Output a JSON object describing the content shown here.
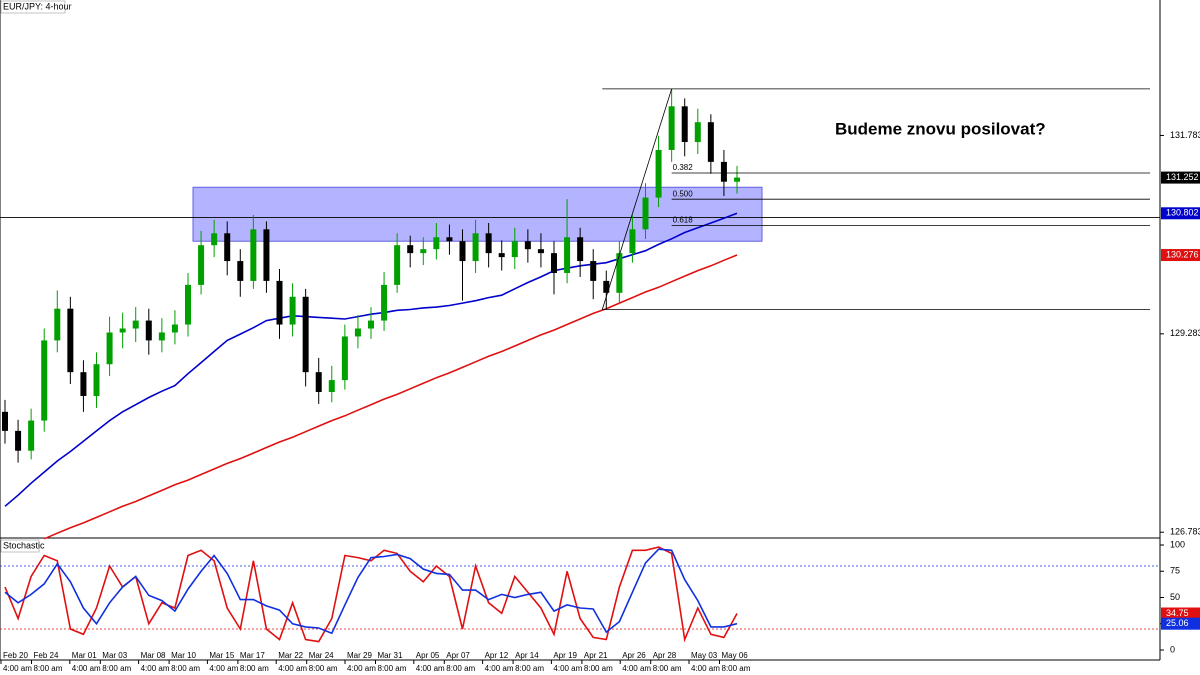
{
  "chart_data": [
    {
      "type": "candlestick",
      "title": "EUR/JPY: 4-hour",
      "annotation": "Budeme znovu posilovat?",
      "ylim": [
        126.71,
        133.49
      ],
      "yticks": [
        126.783,
        129.283,
        131.783
      ],
      "up_color": "#00a000",
      "down_color": "#000000",
      "open": [
        128.3,
        128.06,
        127.81,
        128.19,
        129.2,
        129.6,
        128.8,
        128.5,
        128.9,
        129.3,
        129.35,
        129.45,
        129.2,
        129.3,
        129.4,
        129.9,
        130.4,
        130.55,
        130.2,
        129.95,
        130.6,
        129.95,
        129.4,
        129.75,
        128.8,
        128.55,
        128.7,
        129.25,
        129.35,
        129.45,
        129.9,
        130.4,
        130.3,
        130.35,
        130.5,
        130.45,
        130.2,
        130.55,
        130.3,
        130.25,
        130.45,
        130.35,
        130.3,
        130.05,
        130.5,
        130.2,
        129.95,
        129.8,
        130.3,
        130.6,
        131.0,
        131.6,
        132.15,
        131.7,
        131.95,
        131.45,
        131.2
      ],
      "high": [
        128.45,
        128.2,
        128.34,
        129.35,
        129.83,
        129.75,
        128.95,
        129.05,
        129.5,
        129.55,
        129.62,
        129.6,
        129.48,
        129.58,
        130.05,
        130.58,
        130.72,
        130.7,
        130.35,
        130.78,
        130.7,
        130.1,
        129.92,
        129.85,
        128.98,
        128.88,
        129.4,
        129.52,
        129.62,
        130.06,
        130.55,
        130.52,
        130.5,
        130.68,
        130.66,
        130.6,
        130.72,
        130.68,
        130.46,
        130.62,
        130.6,
        130.55,
        130.45,
        130.98,
        130.62,
        130.35,
        130.08,
        130.45,
        130.78,
        131.18,
        131.78,
        132.37,
        132.25,
        132.12,
        132.05,
        131.6,
        131.4
      ],
      "low": [
        127.9,
        127.66,
        127.7,
        128.05,
        129.05,
        128.65,
        128.3,
        128.35,
        128.75,
        129.1,
        129.18,
        129.02,
        129.05,
        129.15,
        129.25,
        129.78,
        130.25,
        130.02,
        129.75,
        129.85,
        129.8,
        129.22,
        129.25,
        128.62,
        128.4,
        128.42,
        128.58,
        129.1,
        129.22,
        129.32,
        129.8,
        130.12,
        130.15,
        130.22,
        130.28,
        129.7,
        130.05,
        130.12,
        130.08,
        130.1,
        130.18,
        130.12,
        129.78,
        129.92,
        130.0,
        129.72,
        129.59,
        129.68,
        130.18,
        130.48,
        130.88,
        131.45,
        131.52,
        131.55,
        131.3,
        131.02,
        131.05
      ],
      "close": [
        128.06,
        127.81,
        128.19,
        129.2,
        129.6,
        128.8,
        128.5,
        128.9,
        129.3,
        129.35,
        129.45,
        129.2,
        129.3,
        129.4,
        129.9,
        130.4,
        130.55,
        130.2,
        129.95,
        130.6,
        129.95,
        129.4,
        129.75,
        128.8,
        128.55,
        128.7,
        129.25,
        129.35,
        129.45,
        129.9,
        130.4,
        130.3,
        130.35,
        130.5,
        130.45,
        130.2,
        130.55,
        130.3,
        130.25,
        130.45,
        130.35,
        130.3,
        130.05,
        130.5,
        130.2,
        129.95,
        129.8,
        130.3,
        130.6,
        131.0,
        131.6,
        132.15,
        131.7,
        131.95,
        131.45,
        131.2,
        131.252
      ],
      "series": [
        {
          "color": "#0000cc",
          "values": [
            127.11,
            127.25,
            127.4,
            127.54,
            127.68,
            127.8,
            127.93,
            128.06,
            128.19,
            128.3,
            128.39,
            128.48,
            128.56,
            128.63,
            128.78,
            128.92,
            129.06,
            129.2,
            129.28,
            129.36,
            129.45,
            129.48,
            129.51,
            129.5,
            129.49,
            129.48,
            129.47,
            129.5,
            129.53,
            129.55,
            129.58,
            129.59,
            129.61,
            129.62,
            129.64,
            129.67,
            129.7,
            129.74,
            129.77,
            129.85,
            129.93,
            130.0,
            130.08,
            130.11,
            130.14,
            130.16,
            130.18,
            130.23,
            130.28,
            130.33,
            130.41,
            130.48,
            130.56,
            130.62,
            130.68,
            130.74,
            130.802
          ]
        },
        {
          "color": "#e01010",
          "values": [
            null,
            null,
            null,
            126.7,
            126.77,
            126.84,
            126.9,
            126.97,
            127.04,
            127.11,
            127.17,
            127.24,
            127.31,
            127.38,
            127.44,
            127.51,
            127.58,
            127.65,
            127.71,
            127.78,
            127.85,
            127.92,
            127.98,
            128.05,
            128.12,
            128.19,
            128.25,
            128.32,
            128.39,
            128.46,
            128.52,
            128.59,
            128.66,
            128.73,
            128.79,
            128.86,
            128.93,
            129.0,
            129.06,
            129.13,
            129.2,
            129.27,
            129.33,
            129.4,
            129.47,
            129.54,
            129.6,
            129.67,
            129.74,
            129.81,
            129.87,
            129.94,
            130.01,
            130.08,
            130.14,
            130.21,
            130.276
          ]
        }
      ],
      "markers": [
        {
          "value": 131.252,
          "color": "#000000"
        },
        {
          "value": 130.802,
          "color": "#0000cc"
        },
        {
          "value": 130.276,
          "color": "#e01010"
        }
      ],
      "zone": [
        130.45,
        131.13
      ],
      "zone_color": "#8080ff",
      "hline": 130.75,
      "fib": {
        "high": 132.37,
        "low": 129.59,
        "levels": [
          {
            "label": "0.382",
            "price": 131.31
          },
          {
            "label": "0.500",
            "price": 130.98
          },
          {
            "label": "0.618",
            "price": 130.65
          }
        ]
      }
    },
    {
      "type": "line",
      "title": "Stochastic",
      "ylim": [
        0,
        100
      ],
      "yticks": [
        100,
        75,
        50,
        25,
        0
      ],
      "levels": [
        80,
        20
      ],
      "series": [
        {
          "color": "#e01010",
          "values": [
            60,
            30,
            70,
            90,
            85,
            20,
            15,
            40,
            80,
            60,
            70,
            25,
            45,
            40,
            90,
            95,
            85,
            40,
            20,
            85,
            20,
            10,
            45,
            10,
            8,
            30,
            90,
            88,
            85,
            95,
            92,
            75,
            65,
            80,
            70,
            20,
            80,
            45,
            35,
            70,
            55,
            40,
            15,
            75,
            30,
            12,
            10,
            60,
            95,
            95,
            98,
            92,
            10,
            40,
            15,
            12,
            34.75
          ]
        },
        {
          "color": "#1030e0",
          "values": [
            55,
            45,
            53,
            63,
            82,
            65,
            40,
            25,
            45,
            60,
            70,
            52,
            47,
            37,
            58,
            75,
            90,
            73,
            48,
            48,
            42,
            38,
            25,
            22,
            21,
            16,
            43,
            69,
            88,
            89,
            91,
            87,
            77,
            73,
            72,
            57,
            57,
            48,
            53,
            50,
            53,
            55,
            37,
            43,
            40,
            39,
            17,
            27,
            55,
            83,
            96,
            95,
            67,
            47,
            22,
            22,
            25.06
          ]
        }
      ],
      "markers": [
        {
          "value": 34.75,
          "color": "#e01010"
        },
        {
          "value": 25.06,
          "color": "#1030e0"
        }
      ],
      "x_labels": [
        {
          "date": "Feb 20",
          "time": "4:00 am"
        },
        {
          "date": "Feb 24",
          "time": "8:00 am"
        },
        {
          "date": "Mar 01",
          "time": "4:00 am"
        },
        {
          "date": "Mar 03",
          "time": "8:00 am"
        },
        {
          "date": "Mar 08",
          "time": "4:00 am"
        },
        {
          "date": "Mar 10",
          "time": "8:00 am"
        },
        {
          "date": "Mar 15",
          "time": "4:00 am"
        },
        {
          "date": "Mar 17",
          "time": "8:00 am"
        },
        {
          "date": "Mar 22",
          "time": "4:00 am"
        },
        {
          "date": "Mar 24",
          "time": "8:00 am"
        },
        {
          "date": "Mar 29",
          "time": "4:00 am"
        },
        {
          "date": "Mar 31",
          "time": "8:00 am"
        },
        {
          "date": "Apr 05",
          "time": "4:00 am"
        },
        {
          "date": "Apr 07",
          "time": "8:00 am"
        },
        {
          "date": "Apr 12",
          "time": "4:00 am"
        },
        {
          "date": "Apr 14",
          "time": "8:00 am"
        },
        {
          "date": "Apr 19",
          "time": "4:00 am"
        },
        {
          "date": "Apr 21",
          "time": "8:00 am"
        },
        {
          "date": "Apr 26",
          "time": "4:00 am"
        },
        {
          "date": "Apr 28",
          "time": "8:00 am"
        },
        {
          "date": "May 03",
          "time": "4:00 am"
        },
        {
          "date": "May 06",
          "time": "8:00 am"
        }
      ]
    }
  ]
}
